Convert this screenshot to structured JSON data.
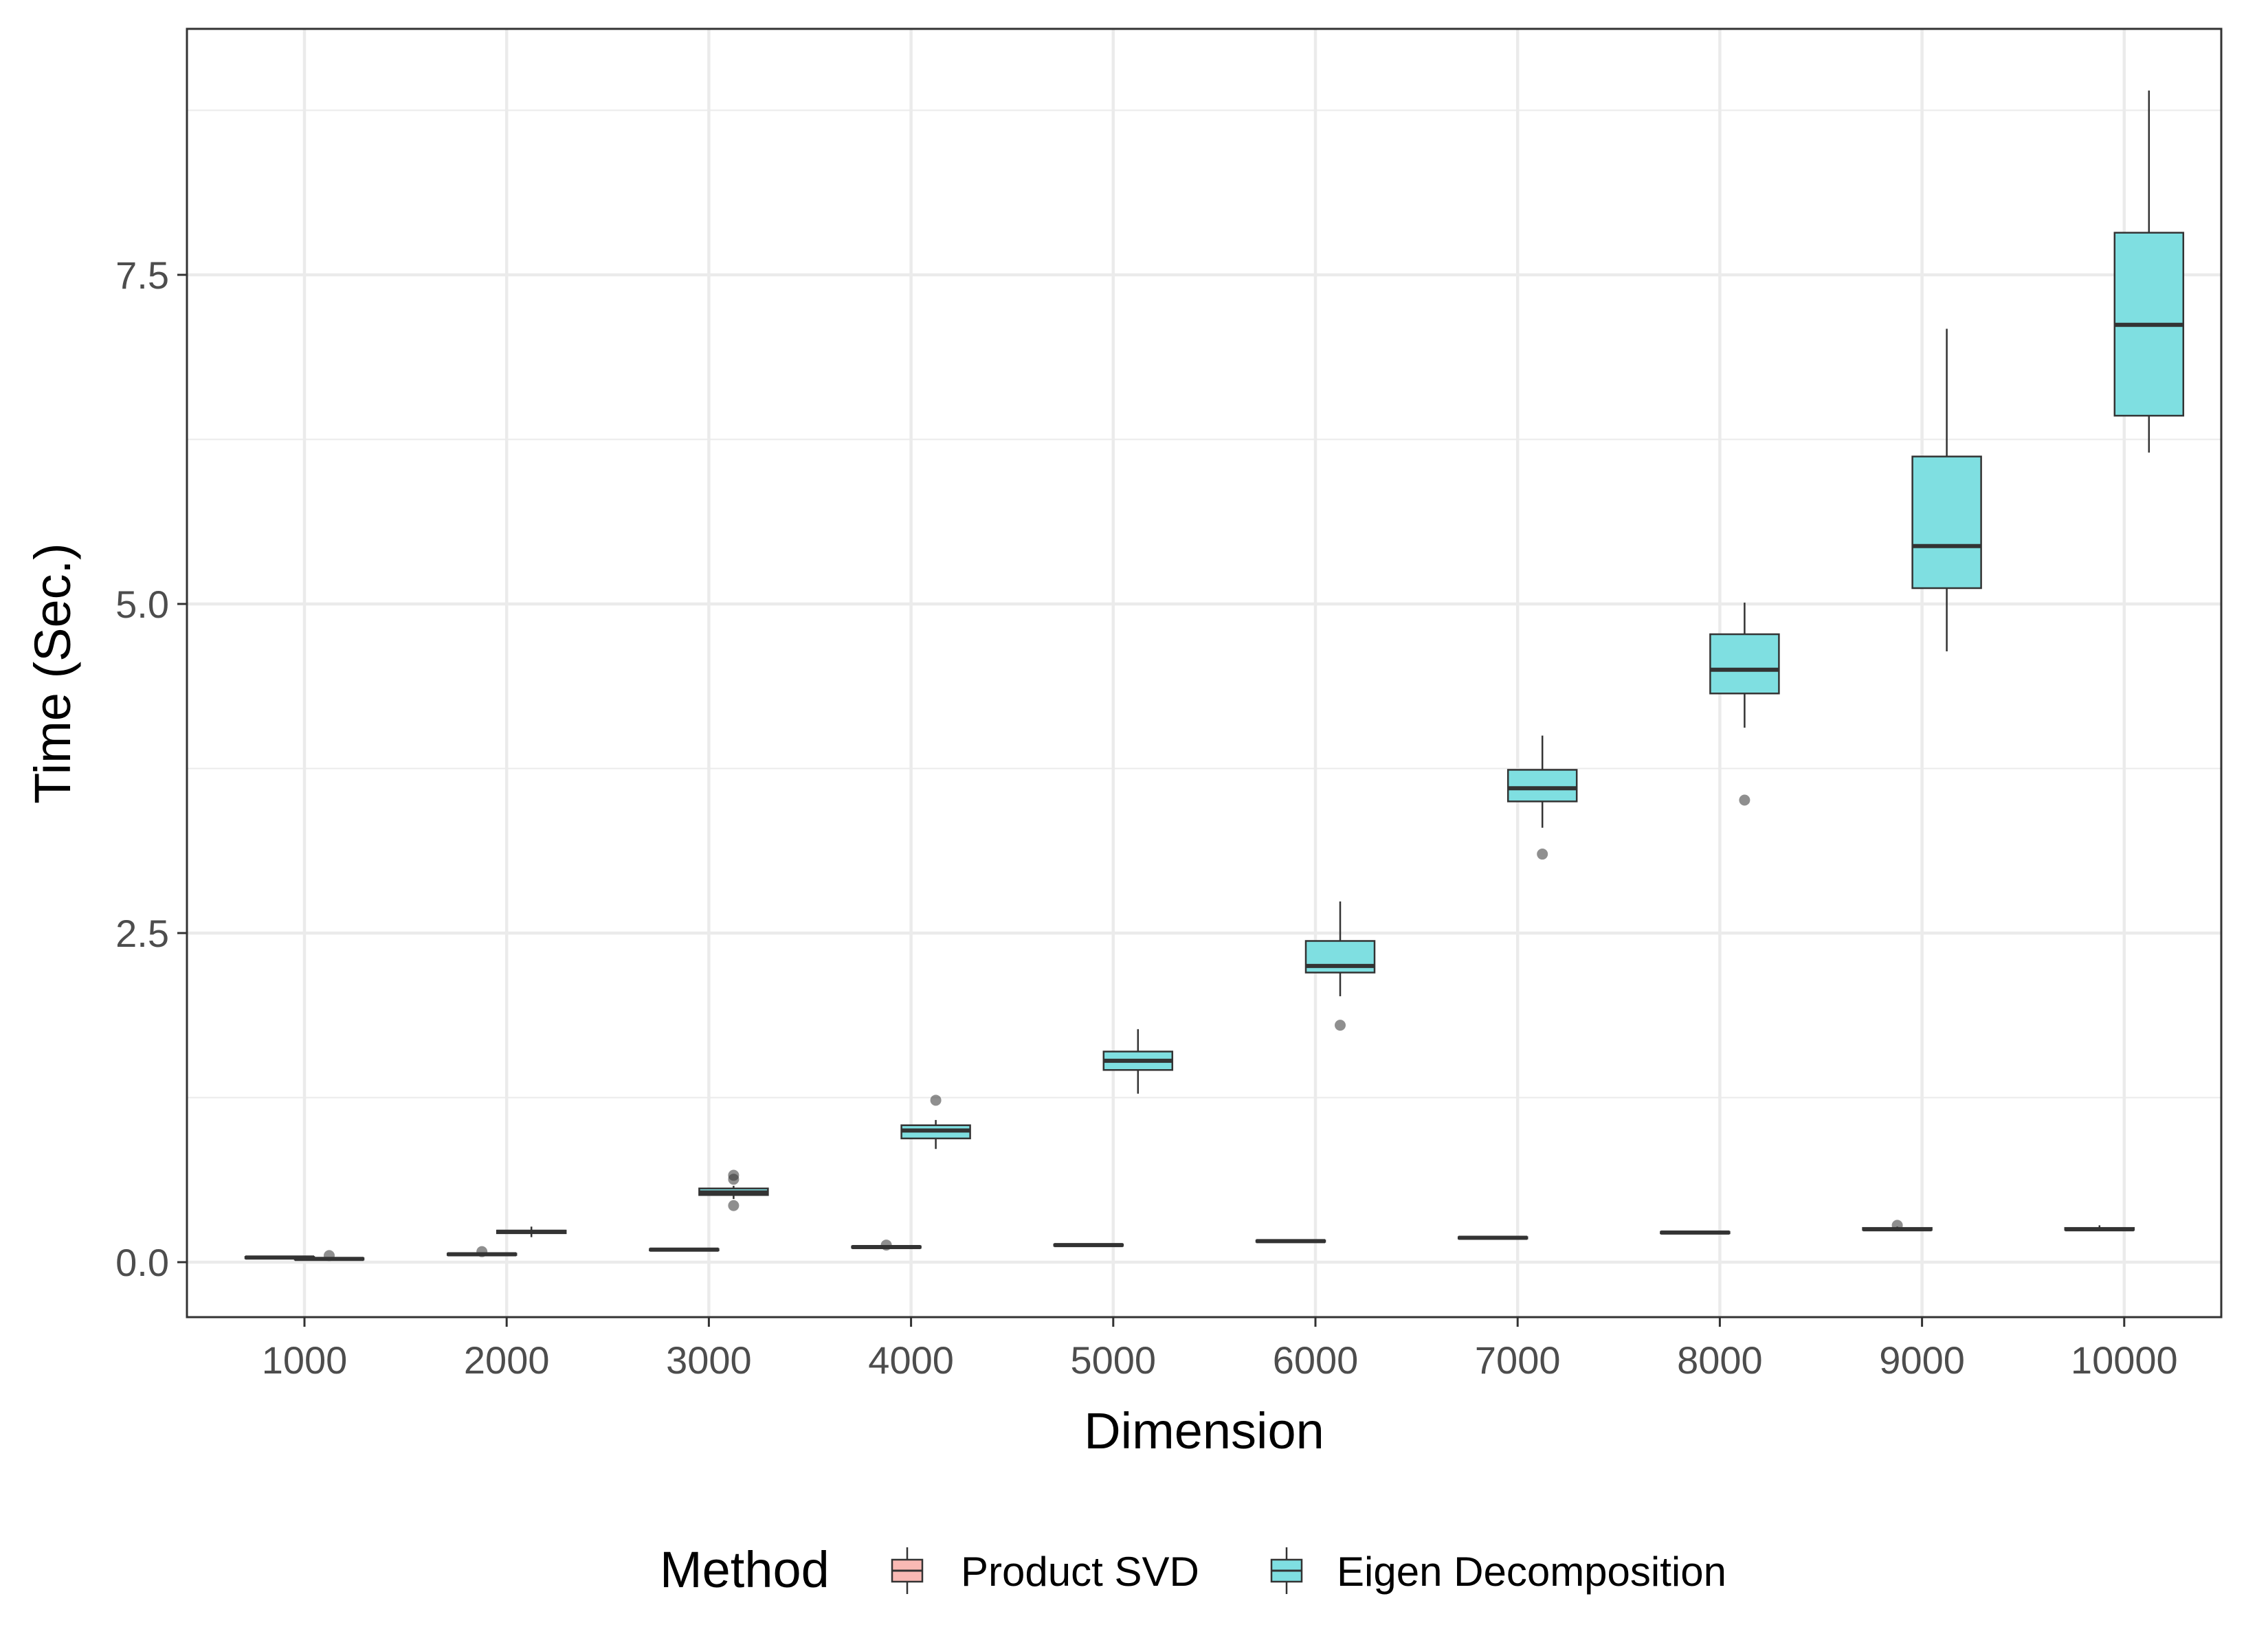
{
  "chart_data": {
    "type": "boxplot",
    "xlabel": "Dimension",
    "ylabel": "Time (Sec.)",
    "ylim": [
      -0.4,
      9.3
    ],
    "yticks": [
      0.0,
      2.5,
      5.0,
      7.5
    ],
    "ytick_labels": [
      "0.0",
      "2.5",
      "5.0",
      "7.5"
    ],
    "categories": [
      "1000",
      "2000",
      "3000",
      "4000",
      "5000",
      "6000",
      "7000",
      "8000",
      "9000",
      "10000"
    ],
    "grid": true,
    "legend": {
      "title": "Method",
      "position": "bottom"
    },
    "series": [
      {
        "name": "Product SVD",
        "color": "#F8766D",
        "fill": "#F9B9B4",
        "boxes": [
          {
            "min": 0.03,
            "q1": 0.03,
            "median": 0.035,
            "q3": 0.04,
            "max": 0.04,
            "outliers": []
          },
          {
            "min": 0.055,
            "q1": 0.055,
            "median": 0.06,
            "q3": 0.065,
            "max": 0.07,
            "outliers": [
              0.08
            ]
          },
          {
            "min": 0.09,
            "q1": 0.09,
            "median": 0.095,
            "q3": 0.1,
            "max": 0.1,
            "outliers": []
          },
          {
            "min": 0.105,
            "q1": 0.11,
            "median": 0.115,
            "q3": 0.12,
            "max": 0.125,
            "outliers": [
              0.13
            ]
          },
          {
            "min": 0.125,
            "q1": 0.125,
            "median": 0.13,
            "q3": 0.135,
            "max": 0.135,
            "outliers": []
          },
          {
            "min": 0.155,
            "q1": 0.155,
            "median": 0.16,
            "q3": 0.165,
            "max": 0.165,
            "outliers": []
          },
          {
            "min": 0.18,
            "q1": 0.18,
            "median": 0.185,
            "q3": 0.19,
            "max": 0.19,
            "outliers": []
          },
          {
            "min": 0.22,
            "q1": 0.22,
            "median": 0.225,
            "q3": 0.23,
            "max": 0.23,
            "outliers": []
          },
          {
            "min": 0.24,
            "q1": 0.245,
            "median": 0.25,
            "q3": 0.26,
            "max": 0.27,
            "outliers": [
              0.28
            ]
          },
          {
            "min": 0.24,
            "q1": 0.245,
            "median": 0.25,
            "q3": 0.26,
            "max": 0.28,
            "outliers": []
          }
        ]
      },
      {
        "name": "Eigen Decomposition",
        "color": "#00BFC4",
        "fill": "#7FDFE1",
        "boxes": [
          {
            "min": 0.02,
            "q1": 0.02,
            "median": 0.025,
            "q3": 0.03,
            "max": 0.03,
            "outliers": [
              0.05
            ]
          },
          {
            "min": 0.19,
            "q1": 0.22,
            "median": 0.23,
            "q3": 0.24,
            "max": 0.27,
            "outliers": []
          },
          {
            "min": 0.48,
            "q1": 0.51,
            "median": 0.53,
            "q3": 0.56,
            "max": 0.58,
            "outliers": [
              0.43,
              0.63,
              0.66
            ]
          },
          {
            "min": 0.86,
            "q1": 0.94,
            "median": 1.0,
            "q3": 1.04,
            "max": 1.08,
            "outliers": [
              1.23
            ]
          },
          {
            "min": 1.28,
            "q1": 1.46,
            "median": 1.53,
            "q3": 1.6,
            "max": 1.77,
            "outliers": []
          },
          {
            "min": 2.02,
            "q1": 2.2,
            "median": 2.25,
            "q3": 2.44,
            "max": 2.74,
            "outliers": [
              1.8
            ]
          },
          {
            "min": 3.3,
            "q1": 3.5,
            "median": 3.6,
            "q3": 3.74,
            "max": 4.0,
            "outliers": [
              3.1
            ]
          },
          {
            "min": 4.06,
            "q1": 4.32,
            "median": 4.5,
            "q3": 4.77,
            "max": 5.01,
            "outliers": [
              3.51
            ]
          },
          {
            "min": 4.64,
            "q1": 5.12,
            "median": 5.44,
            "q3": 6.12,
            "max": 7.09,
            "outliers": []
          },
          {
            "min": 6.15,
            "q1": 6.43,
            "median": 7.12,
            "q3": 7.82,
            "max": 8.9,
            "outliers": []
          }
        ]
      }
    ]
  }
}
